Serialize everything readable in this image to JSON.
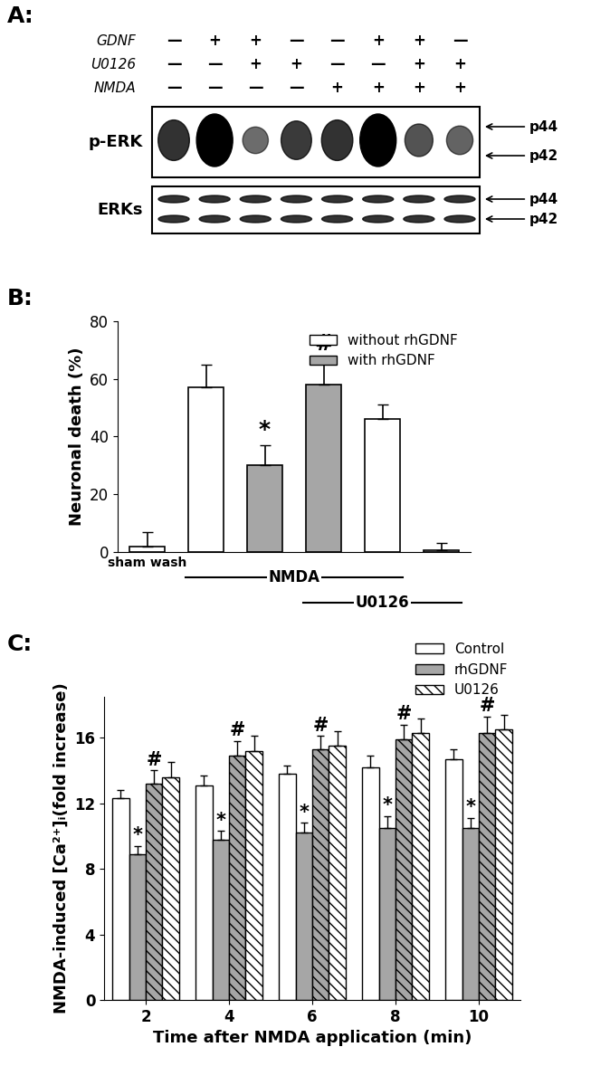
{
  "panel_labels": [
    "A:",
    "B:",
    "C:"
  ],
  "blot": {
    "treatments": [
      {
        "name": "GDNF",
        "signs": [
          "—",
          "+",
          "+",
          "—",
          "—",
          "+",
          "+",
          "—"
        ]
      },
      {
        "name": "U0126",
        "signs": [
          "—",
          "—",
          "+",
          "+",
          "—",
          "—",
          "+",
          "+"
        ]
      },
      {
        "name": "NMDA",
        "signs": [
          "—",
          "—",
          "—",
          "—",
          "+",
          "+",
          "+",
          "+"
        ]
      }
    ],
    "rows": [
      {
        "label": "p-ERK",
        "intensity": [
          0.7,
          1.0,
          0.35,
          0.65,
          0.7,
          1.0,
          0.5,
          0.4
        ]
      },
      {
        "label": "ERKs",
        "intensity": [
          0.8,
          0.8,
          0.8,
          0.8,
          0.8,
          0.8,
          0.8,
          0.8
        ]
      }
    ],
    "bands": [
      "p44",
      "p42"
    ]
  },
  "chart_data": [
    {
      "type": "bar",
      "y_label": "Neuronal death (%)",
      "categories": [
        "sham wash",
        null,
        null,
        null,
        null,
        null
      ],
      "groups": [
        {
          "label": "NMDA",
          "from": 1,
          "to": 4
        },
        {
          "label": "U0126",
          "from": 3,
          "to": 5
        }
      ],
      "series": [
        {
          "name": "without rhGDNF",
          "color": "#ffffff",
          "values": [
            2,
            57,
            null,
            null,
            46,
            0.5
          ],
          "errors": [
            5,
            8,
            null,
            null,
            5,
            2.5
          ],
          "annotations": [
            null,
            null,
            null,
            null,
            null,
            null
          ]
        },
        {
          "name": "with rhGDNF",
          "color": "#a6a6a6",
          "values": [
            null,
            null,
            30,
            58,
            null,
            null
          ],
          "errors": [
            null,
            null,
            7,
            9,
            null,
            null
          ],
          "annotations": [
            null,
            null,
            "*",
            "#",
            null,
            null
          ]
        }
      ],
      "ylim": [
        0,
        80
      ],
      "yticks": [
        0,
        20,
        40,
        60,
        80
      ],
      "legend": "upper right"
    },
    {
      "type": "bar",
      "x_label": "Time after NMDA application (min)",
      "y_label": "NMDA-induced [Ca²⁺]ᵢ(fold increase)",
      "categories": [
        2,
        4,
        6,
        8,
        10
      ],
      "series": [
        {
          "name": "Control",
          "color": "#ffffff",
          "values": [
            12.3,
            13.1,
            13.8,
            14.2,
            14.7
          ],
          "errors": [
            0.5,
            0.6,
            0.5,
            0.7,
            0.6
          ],
          "annotations": [
            null,
            null,
            null,
            null,
            null
          ]
        },
        {
          "name": "rhGDNF",
          "color": "#a6a6a6",
          "values": [
            8.9,
            9.8,
            10.2,
            10.5,
            10.5
          ],
          "errors": [
            0.5,
            0.5,
            0.6,
            0.7,
            0.6
          ],
          "annotations": [
            "*",
            "*",
            "*",
            "*",
            "*"
          ]
        },
        {
          "name": null,
          "color": "#a6a6a6",
          "values": [
            13.2,
            14.9,
            15.3,
            15.9,
            16.3
          ],
          "errors": [
            0.8,
            0.9,
            0.8,
            0.9,
            1.0
          ],
          "annotations": [
            "#",
            "#",
            "#",
            "#",
            "#"
          ]
        },
        {
          "name": "U0126",
          "color": "#ffffff",
          "values": [
            13.6,
            15.2,
            15.5,
            16.3,
            16.5
          ],
          "errors": [
            0.9,
            0.9,
            0.9,
            0.9,
            0.9
          ],
          "annotations": [
            null,
            null,
            null,
            null,
            null
          ]
        }
      ],
      "ylim": [
        0,
        18.5
      ],
      "yticks": [
        0,
        4,
        8,
        12,
        16
      ],
      "legend": "upper right"
    }
  ]
}
